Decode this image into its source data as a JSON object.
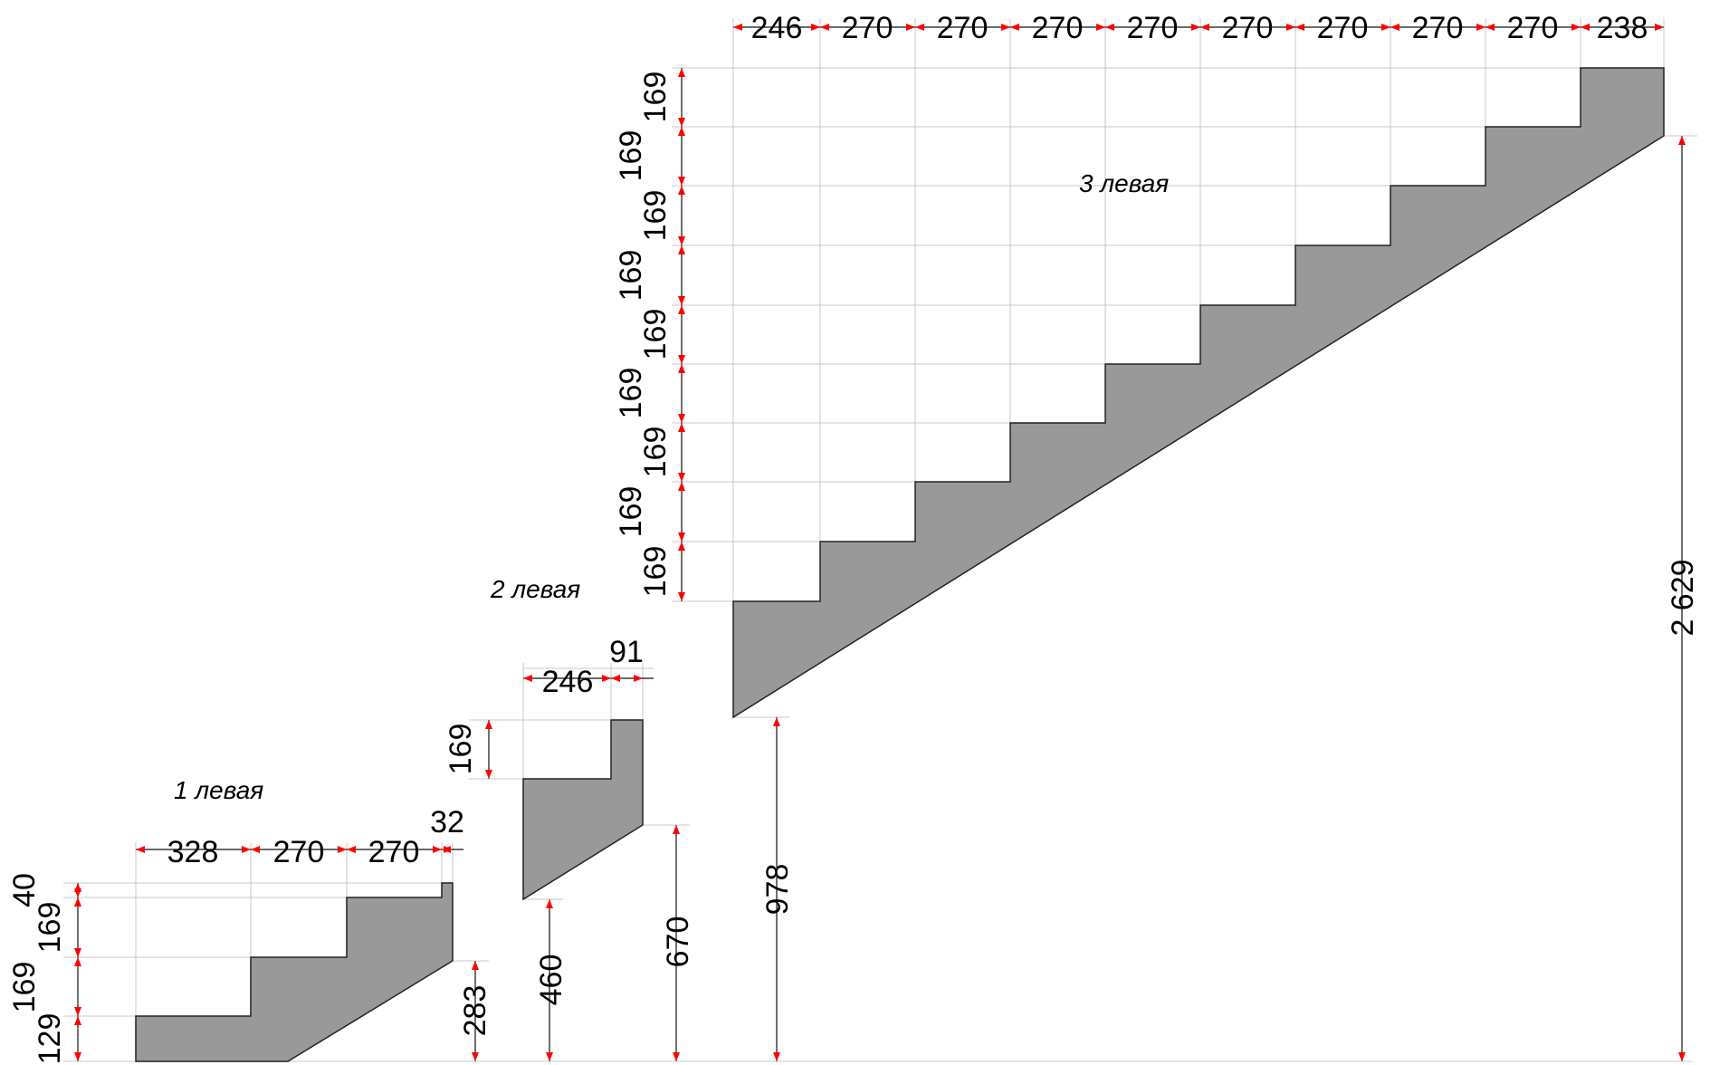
{
  "colors": {
    "stringer_fill": "#999999",
    "outline": "#222222",
    "arrow": "#ff0000",
    "extension_line": "#c8c8c8",
    "dimension_line": "#111111",
    "background": "#ffffff"
  },
  "labels": {
    "stringer_1": "1 левая",
    "stringer_2": "2 левая",
    "stringer_3": "3 левая"
  },
  "stringer_1": {
    "widths": [
      "328",
      "270",
      "270",
      "32"
    ],
    "heights": [
      "40",
      "169",
      "169",
      "129"
    ],
    "height_right": "283"
  },
  "stringer_2": {
    "widths": [
      "246",
      "91"
    ],
    "height_top": "169",
    "height_left": "460",
    "height_right": "670"
  },
  "stringer_3": {
    "widths": [
      "246",
      "270",
      "270",
      "270",
      "270",
      "270",
      "270",
      "270",
      "270",
      "238"
    ],
    "heights": [
      "169",
      "169",
      "169",
      "169",
      "169",
      "169",
      "169",
      "169",
      "169"
    ],
    "height_left": "978",
    "height_right": "2 629"
  }
}
